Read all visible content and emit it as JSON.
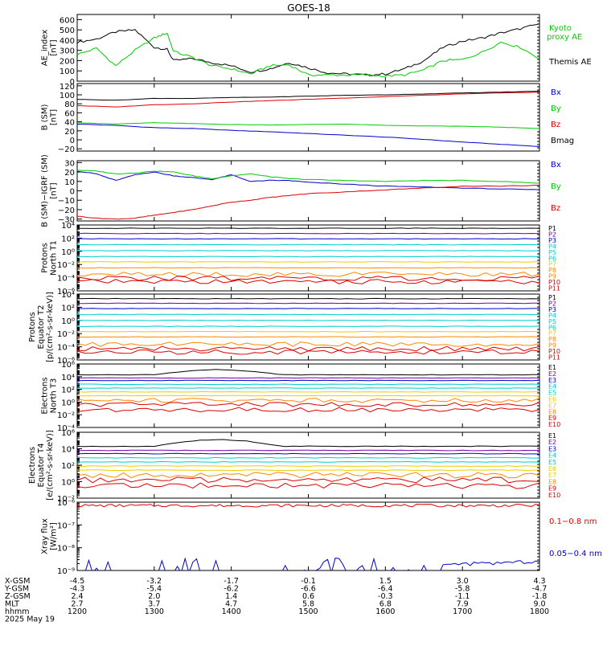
{
  "title": "GOES-18",
  "colors": {
    "black": "#000000",
    "red": "#dd0000",
    "green": "#00cc00",
    "blue": "#0000cc",
    "purple": "#7700aa",
    "cyan": "#00cccc",
    "yellow": "#eecc00",
    "orange": "#ff8800"
  },
  "x_axis": {
    "rows": [
      {
        "label": "X-GSM",
        "values": [
          "-4.5",
          "-3.2",
          "-1.7",
          "-0.1",
          "1.5",
          "3.0",
          "4.3"
        ]
      },
      {
        "label": "Y-GSM",
        "values": [
          "-4.3",
          "-5.4",
          "-6.2",
          "-6.6",
          "-6.4",
          "-5.8",
          "-4.7"
        ]
      },
      {
        "label": "Z-GSM",
        "values": [
          "2.4",
          "2.0",
          "1.4",
          "0.6",
          "-0.3",
          "-1.1",
          "-1.8"
        ]
      },
      {
        "label": "MLT",
        "values": [
          "2.7",
          "3.7",
          "4.7",
          "5.8",
          "6.8",
          "7.9",
          "9.0"
        ]
      },
      {
        "label": "hhmm",
        "values": [
          "1200",
          "1300",
          "1400",
          "1500",
          "1600",
          "1700",
          "1800"
        ]
      }
    ],
    "date": "2025 May 19"
  },
  "chart_data": [
    {
      "id": "ae",
      "type": "line",
      "ylabel": "AE_index\n[nT]",
      "yticks": [
        "600",
        "500",
        "400",
        "300",
        "200",
        "100",
        "0"
      ],
      "ylim": [
        0,
        650
      ],
      "x": [
        1200,
        1215,
        1230,
        1245,
        1300,
        1310,
        1315,
        1330,
        1345,
        1400,
        1415,
        1430,
        1445,
        1500,
        1515,
        1530,
        1545,
        1600,
        1615,
        1630,
        1645,
        1700,
        1715,
        1730,
        1745,
        1800
      ],
      "series": [
        {
          "name": "Themis AE",
          "color_key": "black",
          "values": [
            380,
            410,
            480,
            500,
            330,
            310,
            200,
            220,
            180,
            150,
            90,
            120,
            180,
            130,
            80,
            70,
            60,
            70,
            120,
            200,
            330,
            390,
            420,
            470,
            510,
            560
          ]
        },
        {
          "name": "Kyoto\nproxy AE",
          "color_key": "green",
          "values": [
            260,
            320,
            150,
            300,
            420,
            470,
            290,
            230,
            150,
            120,
            70,
            150,
            160,
            60,
            60,
            60,
            60,
            50,
            60,
            110,
            200,
            210,
            280,
            380,
            330,
            220
          ]
        }
      ]
    },
    {
      "id": "bsm",
      "type": "line",
      "ylabel": "B (SM)\n[nT]",
      "yticks": [
        "120",
        "100",
        "80",
        "60",
        "40",
        "20",
        "0",
        "−20"
      ],
      "ylim": [
        -25,
        125
      ],
      "x": [
        1200,
        1230,
        1300,
        1330,
        1400,
        1430,
        1500,
        1530,
        1600,
        1630,
        1700,
        1730,
        1800
      ],
      "series": [
        {
          "name": "Bx",
          "color_key": "blue",
          "values": [
            35,
            32,
            27,
            25,
            21,
            18,
            14,
            10,
            6,
            1,
            -5,
            -10,
            -15
          ]
        },
        {
          "name": "By",
          "color_key": "green",
          "values": [
            38,
            35,
            38,
            36,
            34,
            33,
            34,
            35,
            32,
            31,
            30,
            28,
            25
          ]
        },
        {
          "name": "Bz",
          "color_key": "red",
          "values": [
            76,
            73,
            78,
            80,
            84,
            87,
            90,
            93,
            96,
            99,
            102,
            104,
            106
          ]
        },
        {
          "name": "Bmag",
          "color_key": "black",
          "values": [
            90,
            88,
            92,
            92,
            94,
            95,
            97,
            99,
            100,
            102,
            104,
            106,
            108
          ]
        }
      ]
    },
    {
      "id": "bsm_igrf",
      "type": "line",
      "ylabel": "B (SM)−IGRF (SM)\n[nT]",
      "yticks": [
        "30",
        "20",
        "10",
        "0",
        "−10",
        "−20",
        "−30"
      ],
      "ylim": [
        -32,
        32
      ],
      "x": [
        1200,
        1215,
        1230,
        1245,
        1300,
        1315,
        1330,
        1345,
        1400,
        1415,
        1430,
        1445,
        1500,
        1530,
        1600,
        1630,
        1700,
        1730,
        1800
      ],
      "series": [
        {
          "name": "Bx",
          "color_key": "blue",
          "values": [
            21,
            18,
            11,
            17,
            20,
            16,
            14,
            12,
            17,
            10,
            11,
            11,
            9,
            7,
            5,
            4,
            3,
            2,
            1
          ]
        },
        {
          "name": "By",
          "color_key": "green",
          "values": [
            22,
            21,
            18,
            19,
            21,
            20,
            16,
            13,
            16,
            18,
            15,
            13,
            12,
            11,
            10,
            11,
            11,
            10,
            8
          ]
        },
        {
          "name": "Bz",
          "color_key": "red",
          "values": [
            -27,
            -29,
            -30,
            -29,
            -26,
            -23,
            -20,
            -16,
            -12,
            -10,
            -7,
            -5,
            -3,
            -1,
            1,
            3,
            5,
            5,
            6
          ]
        }
      ]
    },
    {
      "id": "protons_t1",
      "type": "line",
      "log": true,
      "ylabel": "Protons\nNorth T1",
      "ylim_exp": [
        -6,
        4
      ],
      "yticks": [
        "10⁴",
        "10²",
        "10⁰",
        "10⁻²",
        "10⁻⁴",
        "10⁻⁶"
      ],
      "channels": [
        "P1",
        "P2",
        "P3",
        "P4",
        "P5",
        "P6",
        "P7",
        "P8",
        "P9",
        "P10",
        "P11"
      ],
      "channel_colors": [
        "black",
        "purple",
        "blue",
        "cyan",
        "cyan",
        "cyan",
        "yellow",
        "orange",
        "orange",
        "red",
        "red"
      ],
      "levels": [
        3.5,
        2.7,
        1.9,
        1.0,
        0.1,
        -0.8,
        -1.6,
        -2.5,
        -3.5,
        -4.1,
        -4.6
      ]
    },
    {
      "id": "protons_t2",
      "type": "line",
      "log": true,
      "ylabel": "Protons\nEquator T2\n[p/(cm²-s-sr-keV)]",
      "ylim_exp": [
        -6,
        4
      ],
      "yticks": [
        "10⁴",
        "10²",
        "10⁰",
        "10⁻²",
        "10⁻⁴",
        "10⁻⁶"
      ],
      "channels": [
        "P1",
        "P2",
        "P3",
        "P4",
        "P5",
        "P6",
        "P7",
        "P8",
        "P9",
        "P10",
        "P11"
      ],
      "channel_colors": [
        "black",
        "purple",
        "blue",
        "cyan",
        "cyan",
        "cyan",
        "yellow",
        "orange",
        "orange",
        "red",
        "red"
      ],
      "levels": [
        3.3,
        2.6,
        1.8,
        0.9,
        0.0,
        -0.9,
        -1.7,
        -2.5,
        -3.6,
        -4.3,
        -4.8
      ]
    },
    {
      "id": "electrons_t3",
      "type": "line",
      "log": true,
      "ylabel": "Electrons\nNorth T3",
      "ylim_exp": [
        -4,
        6
      ],
      "yticks": [
        "10⁶",
        "10⁴",
        "10²",
        "10⁰",
        "10⁻²",
        "10⁻⁴"
      ],
      "channels": [
        "E1",
        "E2",
        "E3",
        "E4",
        "E5",
        "E6",
        "E7",
        "E8",
        "E9",
        "E10"
      ],
      "channel_colors": [
        "black",
        "purple",
        "blue",
        "cyan",
        "cyan",
        "yellow",
        "yellow",
        "orange",
        "red",
        "red"
      ],
      "levels": [
        4.3,
        3.8,
        3.4,
        2.8,
        2.2,
        1.6,
        1.0,
        0.3,
        -0.4,
        -1.2
      ]
    },
    {
      "id": "electrons_t4",
      "type": "line",
      "log": true,
      "ylabel": "Electrons\nEquator T4\n[e/(cm²-s-sr-keV)]",
      "ylim_exp": [
        -2,
        6
      ],
      "yticks": [
        "10⁶",
        "10⁴",
        "10²",
        "10⁰",
        "10⁻²"
      ],
      "channels": [
        "E1",
        "E2",
        "E3",
        "E4",
        "E5",
        "E6",
        "E7",
        "E8",
        "E9",
        "E10"
      ],
      "channel_colors": [
        "black",
        "purple",
        "blue",
        "cyan",
        "cyan",
        "yellow",
        "yellow",
        "orange",
        "red",
        "red"
      ],
      "levels": [
        4.3,
        3.8,
        3.4,
        2.9,
        2.4,
        1.9,
        1.4,
        0.8,
        0.2,
        -0.5
      ]
    },
    {
      "id": "xray",
      "type": "line",
      "log": true,
      "ylabel": "Xray  flux\n[W/m²]",
      "ylim_exp": [
        -9,
        -6
      ],
      "yticks": [
        "10⁻⁶",
        "10⁻⁷",
        "10⁻⁸",
        "10⁻⁹"
      ],
      "series": [
        {
          "name": "0.1−0.8 nm",
          "color_key": "red",
          "level": -6.15
        },
        {
          "name": "0.05−0.4 nm",
          "color_key": "blue",
          "level": -9.0
        }
      ]
    }
  ],
  "panel_labels": {
    "ae": [
      "Kyoto\nproxy AE",
      "Themis AE"
    ],
    "bsm": [
      "Bx",
      "By",
      "Bz",
      "Bmag"
    ],
    "bsm_igrf": [
      "Bx",
      "By",
      "Bz"
    ]
  }
}
